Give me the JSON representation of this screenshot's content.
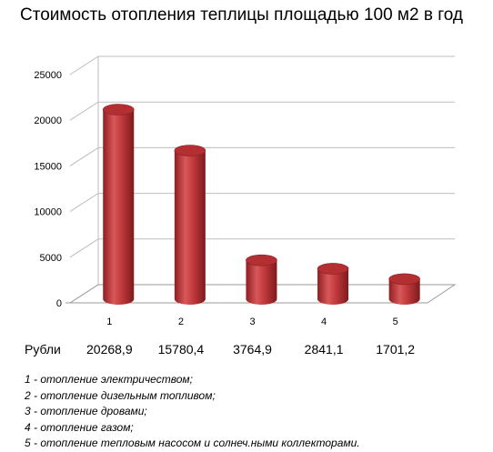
{
  "chart_data": {
    "type": "bar",
    "style": "3d-cylinder",
    "title": "Стоимость отопления теплицы площадью 100 м2 в год",
    "categories": [
      "1",
      "2",
      "3",
      "4",
      "5"
    ],
    "values": [
      20268.9,
      15780.4,
      3764.9,
      2841.1,
      1701.2
    ],
    "value_labels": [
      "20268,9",
      "15780,4",
      "3764,9",
      "2841,1",
      "1701,2"
    ],
    "row_label": "Рубли",
    "y_ticks": [
      "0",
      "5000",
      "10000",
      "15000",
      "20000",
      "25000"
    ],
    "ylim": [
      0,
      25000
    ],
    "grid": true,
    "bar_color": "#c0393b",
    "notes": [
      "1 - отопление электричеством;",
      "2 - отопление дизельным топливом;",
      "3 - отопление дровами;",
      "4 - отопление газом;",
      "5 - отопление тепловым насосом и солнеч.ными коллекторами."
    ]
  }
}
